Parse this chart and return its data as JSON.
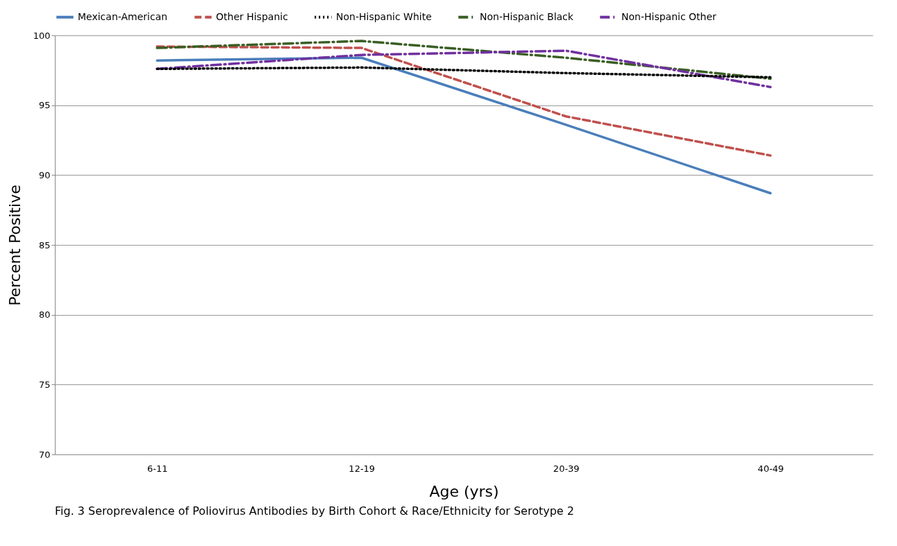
{
  "chart_data": {
    "type": "line",
    "title": "Fig. 3 Seroprevalence of Poliovirus Antibodies by Birth Cohort & Race/Ethnicity for Serotype 2",
    "xlabel": "Age (yrs)",
    "ylabel": "Percent Positive",
    "categories": [
      "6-11",
      "12-19",
      "20-39",
      "40-49"
    ],
    "series": [
      {
        "name": "Mexican-American",
        "color": "#4a7ebb",
        "line_style": "solid",
        "values": [
          98.2,
          98.4,
          93.6,
          88.7
        ]
      },
      {
        "name": "Other Hispanic",
        "color": "#c0504d",
        "line_style": "dashed",
        "values": [
          99.2,
          99.1,
          94.2,
          91.4
        ]
      },
      {
        "name": "Non-Hispanic White",
        "color": "#000000",
        "line_style": "dotted",
        "values": [
          97.6,
          97.7,
          97.3,
          97.0
        ]
      },
      {
        "name": "Non-Hispanic Black",
        "color": "#3a5e24",
        "line_style": "dashdot",
        "values": [
          99.1,
          99.6,
          98.4,
          96.9
        ]
      },
      {
        "name": "Non-Hispanic Other",
        "color": "#7030a0",
        "line_style": "dashdot",
        "values": [
          97.6,
          98.6,
          98.9,
          96.3
        ]
      }
    ],
    "ylim": [
      70,
      100
    ],
    "yticks": [
      70,
      75,
      80,
      85,
      90,
      95,
      100
    ],
    "grid": "y",
    "legend": "top",
    "marker": "none"
  }
}
